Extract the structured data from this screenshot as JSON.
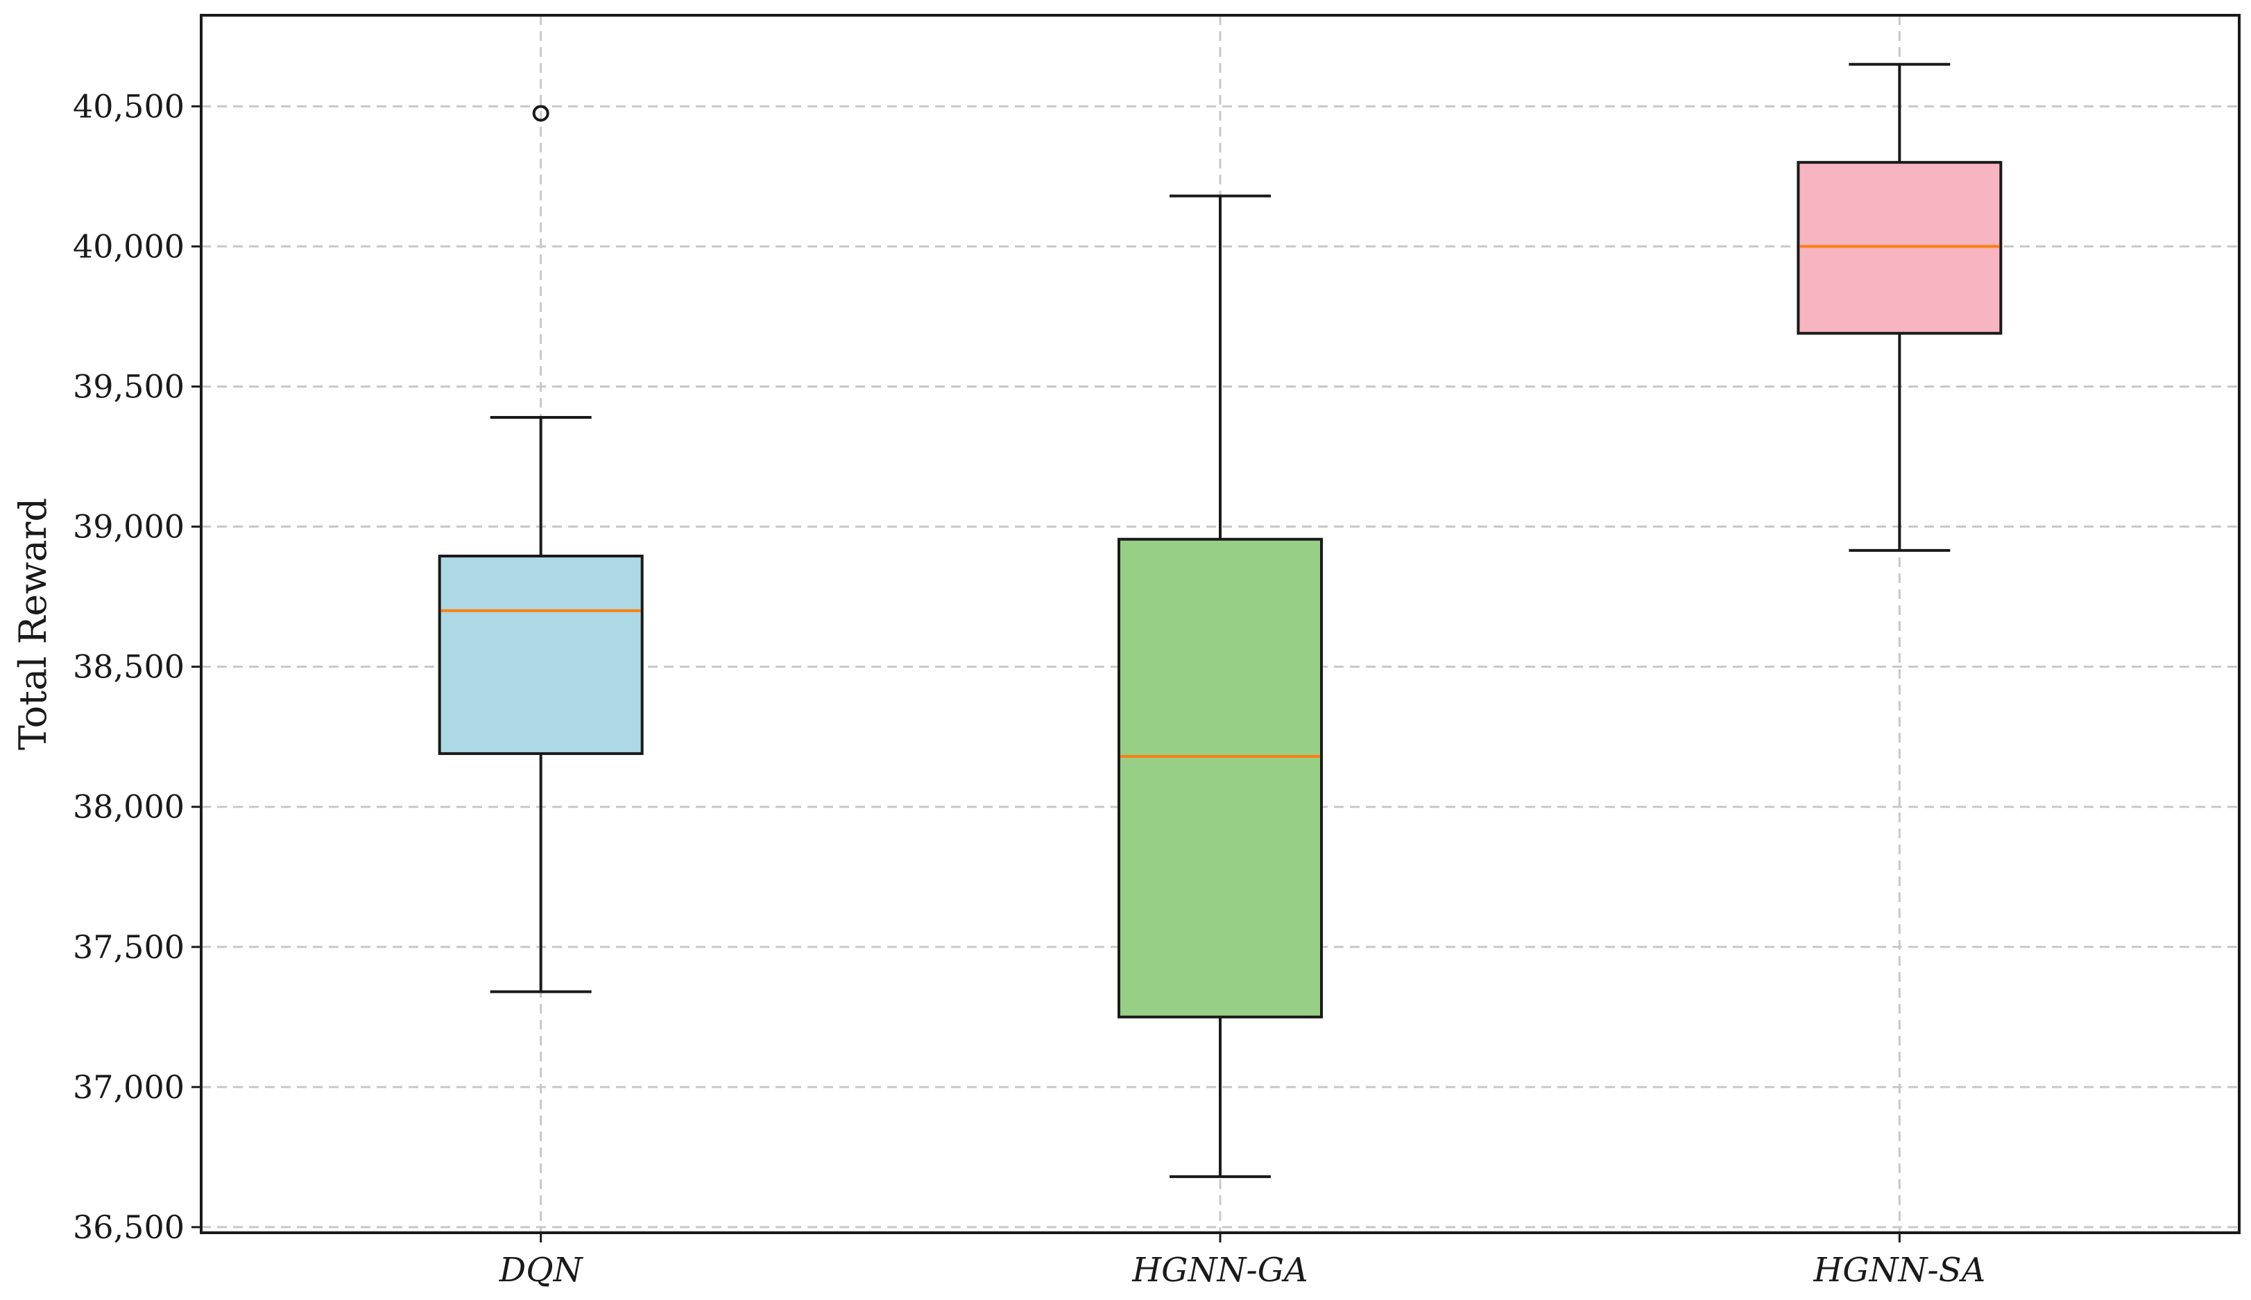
{
  "chart_data": {
    "type": "boxplot",
    "title": "",
    "xlabel": "",
    "ylabel": "Total Reward",
    "ylim": [
      36480,
      40825
    ],
    "yticks": [
      36500,
      37000,
      37500,
      38000,
      38500,
      39000,
      39500,
      40000,
      40500
    ],
    "ytick_labels": [
      "36,500",
      "37,000",
      "37,500",
      "38,000",
      "38,500",
      "39,000",
      "39,500",
      "40,000",
      "40,500"
    ],
    "grid": true,
    "categories": [
      "DQN",
      "HGNN-GA",
      "HGNN-SA"
    ],
    "boxes": [
      {
        "name": "DQN",
        "whisker_low": 37340,
        "q1": 38190,
        "median": 38700,
        "q3": 38895,
        "whisker_high": 39390,
        "outliers": [
          40475
        ],
        "color": "#add8e6"
      },
      {
        "name": "HGNN-GA",
        "whisker_low": 36680,
        "q1": 37250,
        "median": 38180,
        "q3": 38955,
        "whisker_high": 40180,
        "outliers": [],
        "color": "#98cf86"
      },
      {
        "name": "HGNN-SA",
        "whisker_low": 38915,
        "q1": 39690,
        "median": 40000,
        "q3": 40300,
        "whisker_high": 40650,
        "outliers": [],
        "color": "#f7b4c1"
      }
    ],
    "median_color": "#ff7f0e"
  }
}
